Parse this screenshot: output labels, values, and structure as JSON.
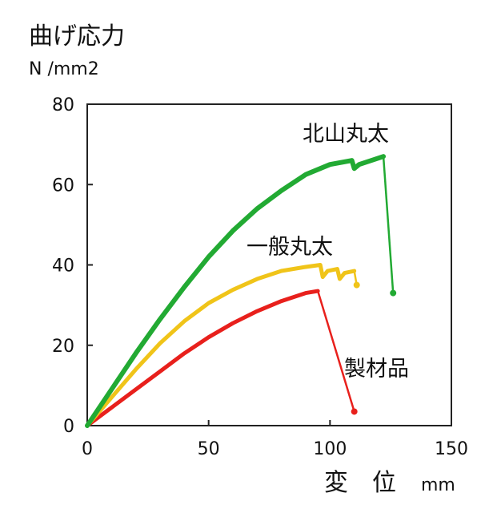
{
  "chart_data": {
    "type": "line",
    "ylabel": "曲げ応力",
    "yunit": "N /mm2",
    "xlabel": "変　位",
    "xunit": "mm",
    "xlim": [
      0,
      150
    ],
    "ylim": [
      0,
      80
    ],
    "xticks": [
      "0",
      "50",
      "100",
      "150"
    ],
    "yticks": [
      "0",
      "20",
      "40",
      "60",
      "80"
    ],
    "grid": false,
    "legend": "direct labels",
    "series": [
      {
        "name": "北山丸太",
        "color": "#22aa33",
        "points": [
          [
            0,
            0
          ],
          [
            10,
            9
          ],
          [
            20,
            18
          ],
          [
            30,
            26.5
          ],
          [
            40,
            34.5
          ],
          [
            50,
            42
          ],
          [
            60,
            48.5
          ],
          [
            70,
            54
          ],
          [
            80,
            58.5
          ],
          [
            90,
            62.5
          ],
          [
            100,
            65
          ],
          [
            109,
            66
          ],
          [
            110,
            64
          ],
          [
            112,
            65
          ],
          [
            122,
            67
          ],
          [
            126,
            33
          ]
        ]
      },
      {
        "name": "一般丸太",
        "color": "#f0c419",
        "points": [
          [
            0,
            0
          ],
          [
            10,
            7
          ],
          [
            20,
            14
          ],
          [
            30,
            20.5
          ],
          [
            40,
            26
          ],
          [
            50,
            30.5
          ],
          [
            60,
            33.8
          ],
          [
            70,
            36.5
          ],
          [
            80,
            38.5
          ],
          [
            90,
            39.5
          ],
          [
            96,
            40
          ],
          [
            97,
            37
          ],
          [
            99,
            38.5
          ],
          [
            103,
            39
          ],
          [
            104,
            36.5
          ],
          [
            106,
            38
          ],
          [
            110,
            38.5
          ],
          [
            111,
            35
          ]
        ]
      },
      {
        "name": "製材品",
        "color": "#e8201c",
        "points": [
          [
            0,
            0
          ],
          [
            10,
            4.5
          ],
          [
            20,
            9
          ],
          [
            30,
            13.5
          ],
          [
            40,
            18
          ],
          [
            50,
            22
          ],
          [
            60,
            25.5
          ],
          [
            70,
            28.5
          ],
          [
            80,
            31
          ],
          [
            90,
            33
          ],
          [
            95,
            33.5
          ],
          [
            110,
            3.5
          ]
        ]
      }
    ]
  }
}
